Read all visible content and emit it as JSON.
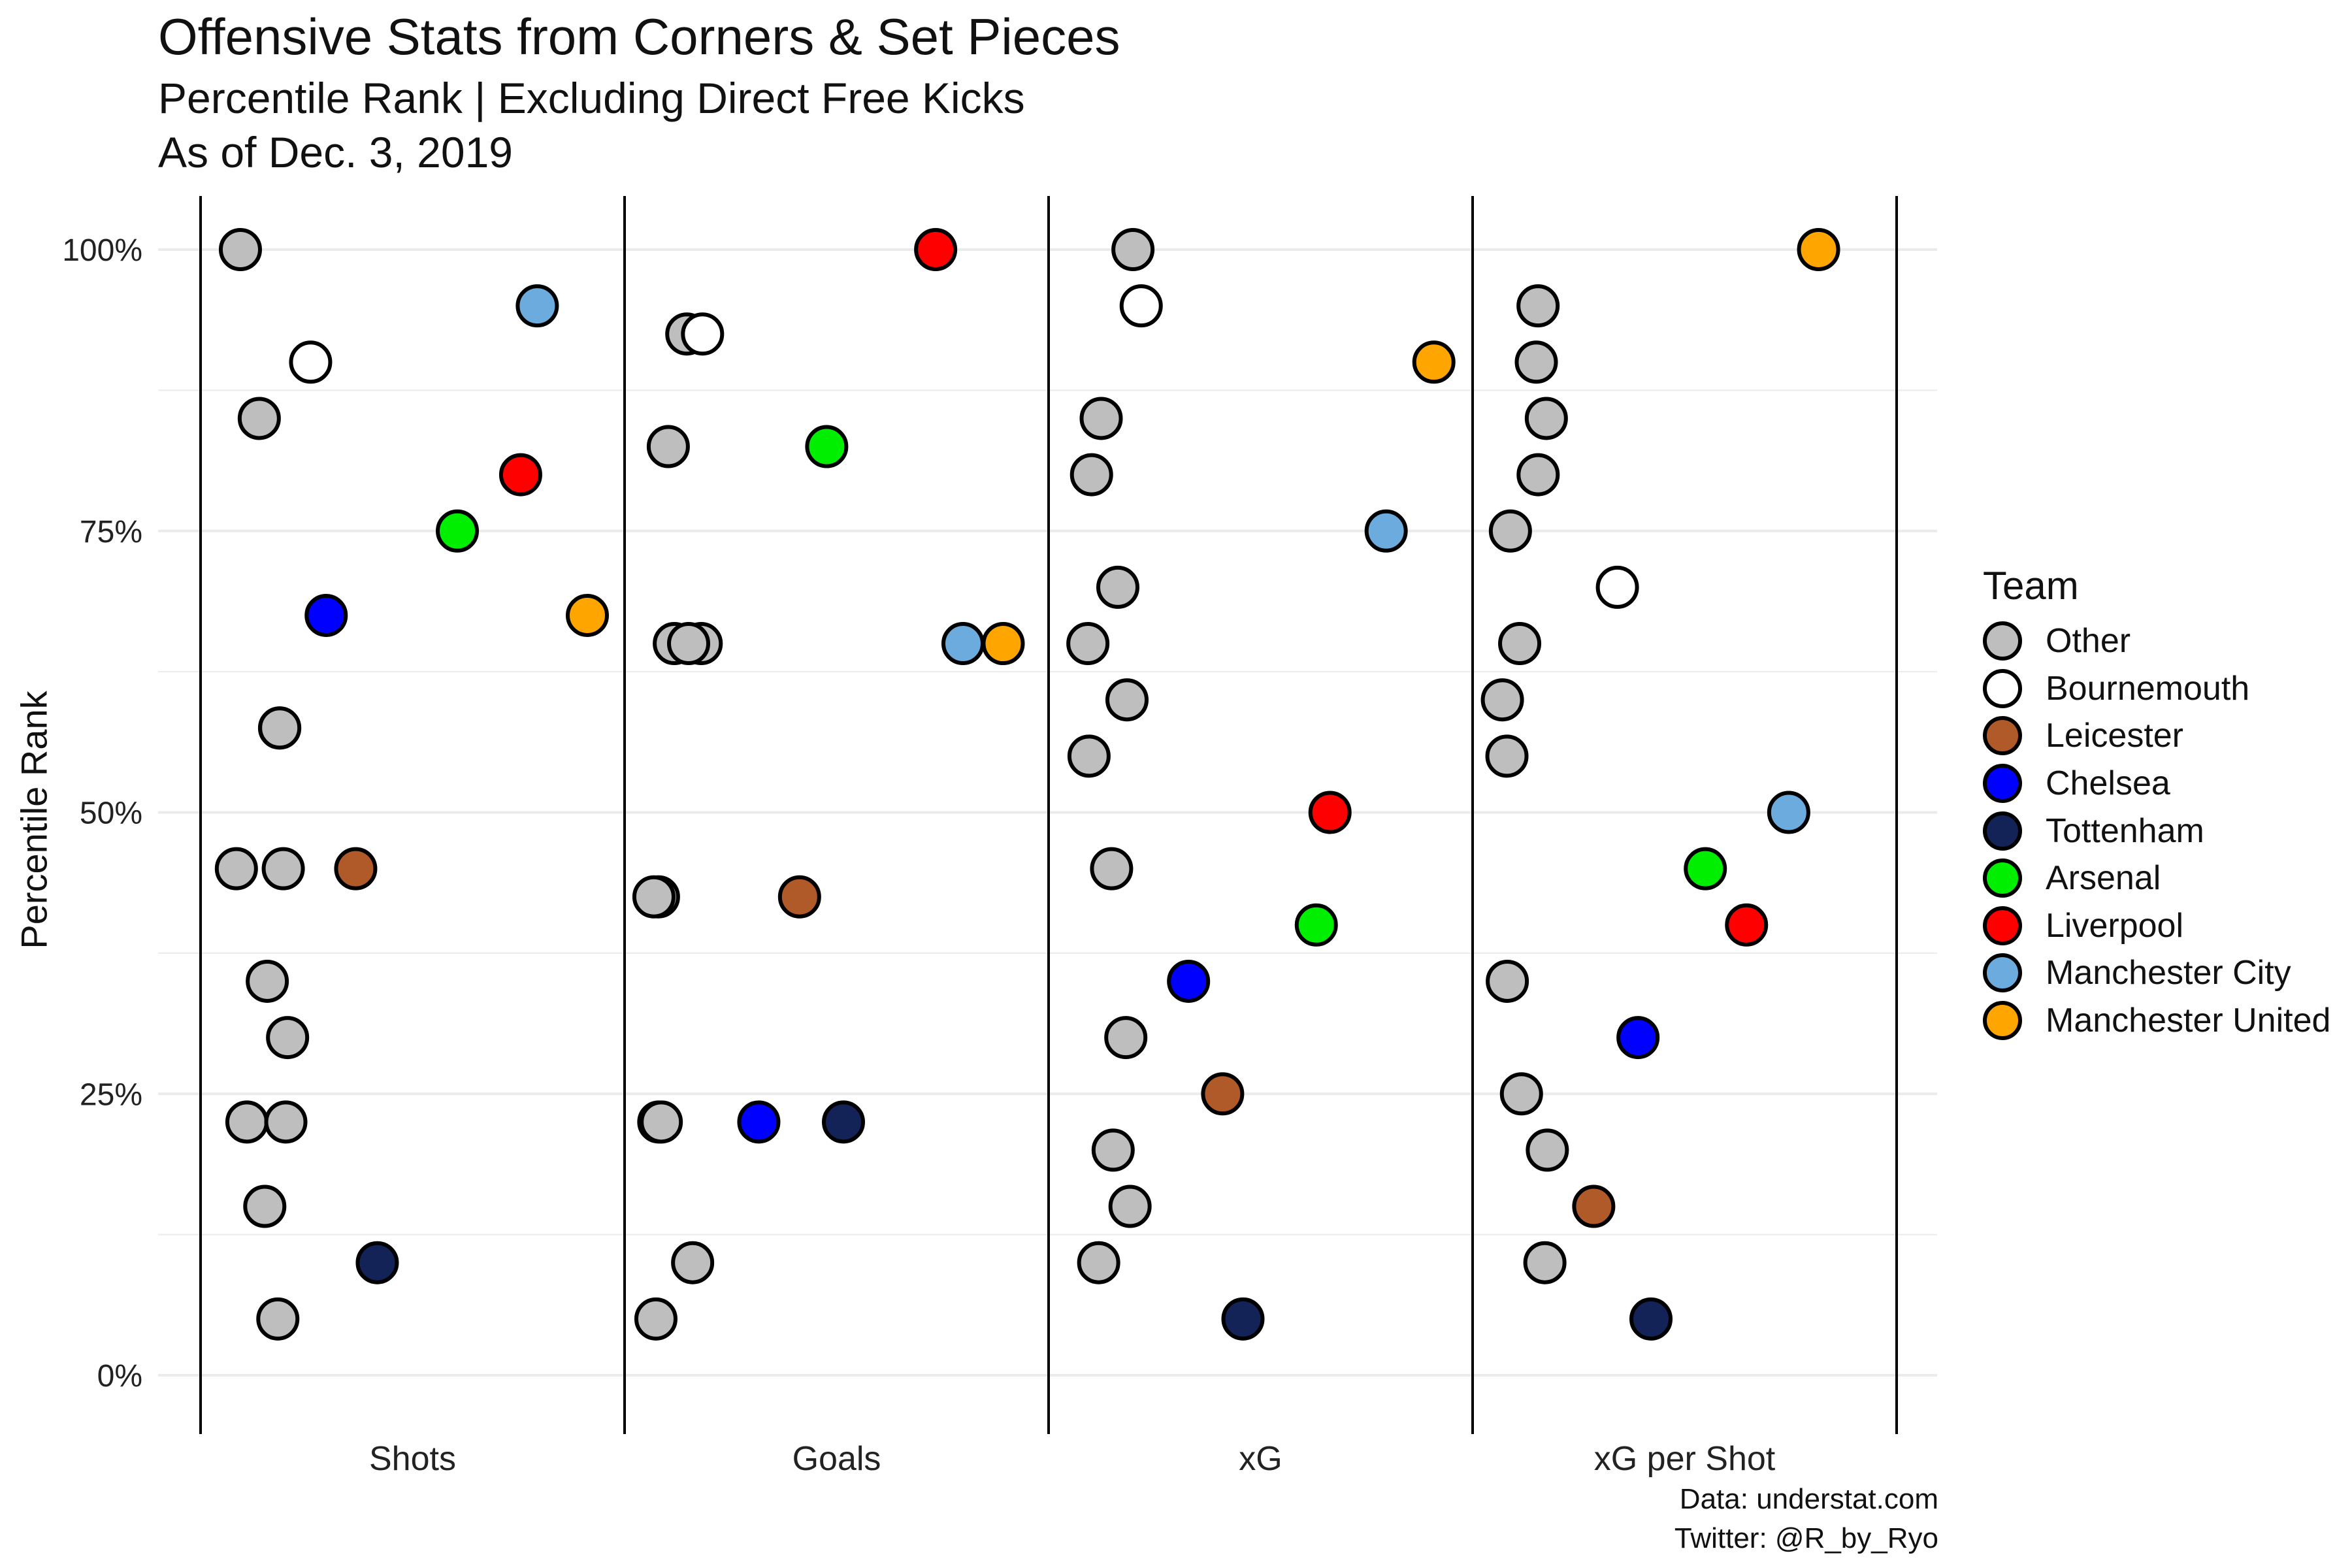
{
  "header": {
    "title": "Offensive Stats from Corners & Set Pieces",
    "subtitle": "Percentile Rank | Excluding Direct Free Kicks",
    "date": "As of Dec. 3, 2019"
  },
  "caption": {
    "line1": "Data: understat.com",
    "line2": "Twitter: @R_by_Ryo"
  },
  "legend": {
    "title": "Team",
    "items": [
      {
        "label": "Other",
        "color": "#bebebe"
      },
      {
        "label": "Bournemouth",
        "color": "#ffffff"
      },
      {
        "label": "Leicester",
        "color": "#b05a2a"
      },
      {
        "label": "Chelsea",
        "color": "#0000ff"
      },
      {
        "label": "Tottenham",
        "color": "#132257"
      },
      {
        "label": "Arsenal",
        "color": "#00ee00"
      },
      {
        "label": "Liverpool",
        "color": "#ff0000"
      },
      {
        "label": "Manchester City",
        "color": "#6cabdd"
      },
      {
        "label": "Manchester United",
        "color": "#ffa500"
      }
    ]
  },
  "chart_data": {
    "type": "scatter",
    "ylabel": "Percentile Rank",
    "xlabel": "",
    "ylim": [
      0,
      100
    ],
    "yticks": [
      "0%",
      "25%",
      "50%",
      "75%",
      "100%"
    ],
    "categories": [
      "Shots",
      "Goals",
      "xG",
      "xG per Shot"
    ],
    "grid": true,
    "legend_position": "right",
    "series": [
      {
        "name": "Other",
        "color": "#bebebe",
        "points": [
          {
            "category": "Shots",
            "values": [
              100,
              85,
              57.5,
              57.5,
              45,
              45,
              35,
              30,
              22.5,
              22.5,
              15,
              5
            ]
          },
          {
            "category": "Goals",
            "values": [
              92.5,
              82.5,
              65,
              65,
              65,
              42.5,
              42.5,
              22.5,
              22.5,
              10,
              5
            ]
          },
          {
            "category": "xG",
            "values": [
              100,
              85,
              80,
              70,
              65,
              60,
              55,
              45,
              30,
              20,
              15,
              10
            ]
          },
          {
            "category": "xG per Shot",
            "values": [
              95,
              90,
              85,
              80,
              75,
              65,
              60,
              55,
              35,
              25,
              20,
              10
            ]
          }
        ]
      },
      {
        "name": "Bournemouth",
        "color": "#ffffff",
        "points": [
          {
            "category": "Shots",
            "values": [
              90
            ]
          },
          {
            "category": "Goals",
            "values": [
              92.5
            ]
          },
          {
            "category": "xG",
            "values": [
              95
            ]
          },
          {
            "category": "xG per Shot",
            "values": [
              70
            ]
          }
        ]
      },
      {
        "name": "Leicester",
        "color": "#b05a2a",
        "points": [
          {
            "category": "Shots",
            "values": [
              45
            ]
          },
          {
            "category": "Goals",
            "values": [
              42.5
            ]
          },
          {
            "category": "xG",
            "values": [
              25
            ]
          },
          {
            "category": "xG per Shot",
            "values": [
              15
            ]
          }
        ]
      },
      {
        "name": "Chelsea",
        "color": "#0000ff",
        "points": [
          {
            "category": "Shots",
            "values": [
              67.5
            ]
          },
          {
            "category": "Goals",
            "values": [
              22.5
            ]
          },
          {
            "category": "xG",
            "values": [
              35
            ]
          },
          {
            "category": "xG per Shot",
            "values": [
              30
            ]
          }
        ]
      },
      {
        "name": "Tottenham",
        "color": "#132257",
        "points": [
          {
            "category": "Shots",
            "values": [
              10
            ]
          },
          {
            "category": "Goals",
            "values": [
              22.5
            ]
          },
          {
            "category": "xG",
            "values": [
              5
            ]
          },
          {
            "category": "xG per Shot",
            "values": [
              5
            ]
          }
        ]
      },
      {
        "name": "Arsenal",
        "color": "#00ee00",
        "points": [
          {
            "category": "Shots",
            "values": [
              75
            ]
          },
          {
            "category": "Goals",
            "values": [
              82.5
            ]
          },
          {
            "category": "xG",
            "values": [
              40
            ]
          },
          {
            "category": "xG per Shot",
            "values": [
              45
            ]
          }
        ]
      },
      {
        "name": "Liverpool",
        "color": "#ff0000",
        "points": [
          {
            "category": "Shots",
            "values": [
              80
            ]
          },
          {
            "category": "Goals",
            "values": [
              100
            ]
          },
          {
            "category": "xG",
            "values": [
              50
            ]
          },
          {
            "category": "xG per Shot",
            "values": [
              40
            ]
          }
        ]
      },
      {
        "name": "Manchester City",
        "color": "#6cabdd",
        "points": [
          {
            "category": "Shots",
            "values": [
              95
            ]
          },
          {
            "category": "Goals",
            "values": [
              65
            ]
          },
          {
            "category": "xG",
            "values": [
              75
            ]
          },
          {
            "category": "xG per Shot",
            "values": [
              50
            ]
          }
        ]
      },
      {
        "name": "Manchester United",
        "color": "#ffa500",
        "points": [
          {
            "category": "Shots",
            "values": [
              67.5
            ]
          },
          {
            "category": "Goals",
            "values": [
              65
            ]
          },
          {
            "category": "xG",
            "values": [
              90
            ]
          },
          {
            "category": "xG per Shot",
            "values": [
              100
            ]
          }
        ]
      }
    ]
  }
}
